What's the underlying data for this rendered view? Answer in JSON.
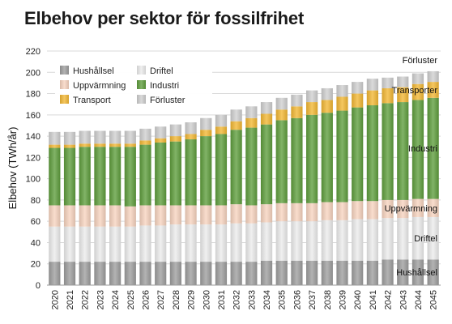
{
  "title": "Elbehov per sektor för fossilfrihet",
  "chart_data": {
    "type": "bar",
    "stacked": true,
    "title": "Elbehov per sektor för fossilfrihet",
    "ylabel": "Elbehov (TWh/år)",
    "xlabel": "",
    "ylim": [
      0,
      220
    ],
    "yticks": [
      0,
      20,
      40,
      60,
      80,
      100,
      120,
      140,
      160,
      180,
      200,
      220
    ],
    "grid": true,
    "legend_position": "top-left",
    "categories": [
      "2020",
      "2021",
      "2022",
      "2023",
      "2024",
      "2025",
      "2026",
      "2027",
      "2028",
      "2029",
      "2030",
      "2031",
      "2032",
      "2033",
      "2034",
      "2035",
      "2036",
      "2037",
      "2038",
      "2039",
      "2040",
      "2041",
      "2042",
      "2043",
      "2044",
      "2045"
    ],
    "series": [
      {
        "name": "Hushållsel",
        "color": "#9e9e9e",
        "values": [
          22,
          22,
          22,
          22,
          22,
          22,
          22,
          22,
          22,
          22,
          22,
          22,
          22,
          22,
          23,
          23,
          23,
          23,
          23,
          23,
          23,
          23,
          24,
          24,
          24,
          24
        ]
      },
      {
        "name": "Driftel",
        "color": "#ececec",
        "values": [
          33,
          33,
          33,
          33,
          33,
          33,
          34,
          34,
          35,
          35,
          35,
          35,
          36,
          36,
          36,
          37,
          37,
          37,
          38,
          38,
          39,
          39,
          39,
          39,
          40,
          40
        ]
      },
      {
        "name": "Uppvärmning",
        "color": "#f7d3bf",
        "values": [
          20,
          20,
          20,
          20,
          20,
          19,
          19,
          19,
          18,
          18,
          18,
          18,
          18,
          17,
          17,
          17,
          17,
          17,
          17,
          17,
          17,
          17,
          17,
          17,
          17,
          17
        ]
      },
      {
        "name": "Industri",
        "color": "#5e9d3c",
        "values": [
          54,
          54,
          55,
          55,
          55,
          56,
          57,
          59,
          60,
          62,
          65,
          67,
          70,
          73,
          75,
          78,
          80,
          83,
          84,
          86,
          88,
          90,
          91,
          92,
          93,
          95
        ]
      },
      {
        "name": "Transport",
        "color": "#f2b733",
        "values": [
          3,
          3,
          3,
          3,
          3,
          3,
          4,
          4,
          5,
          5,
          6,
          7,
          8,
          9,
          10,
          10,
          11,
          12,
          12,
          13,
          13,
          14,
          14,
          14,
          15,
          15
        ]
      },
      {
        "name": "Förluster",
        "color": "#cfcfcf",
        "values": [
          12,
          12,
          12,
          12,
          12,
          12,
          11,
          11,
          11,
          11,
          11,
          11,
          11,
          11,
          11,
          11,
          11,
          11,
          11,
          11,
          11,
          11,
          10,
          10,
          10,
          10
        ]
      }
    ],
    "annotations": [
      "Förluster",
      "Transporter",
      "Industri",
      "Uppvärmning",
      "Driftel",
      "Hushållsel"
    ]
  }
}
